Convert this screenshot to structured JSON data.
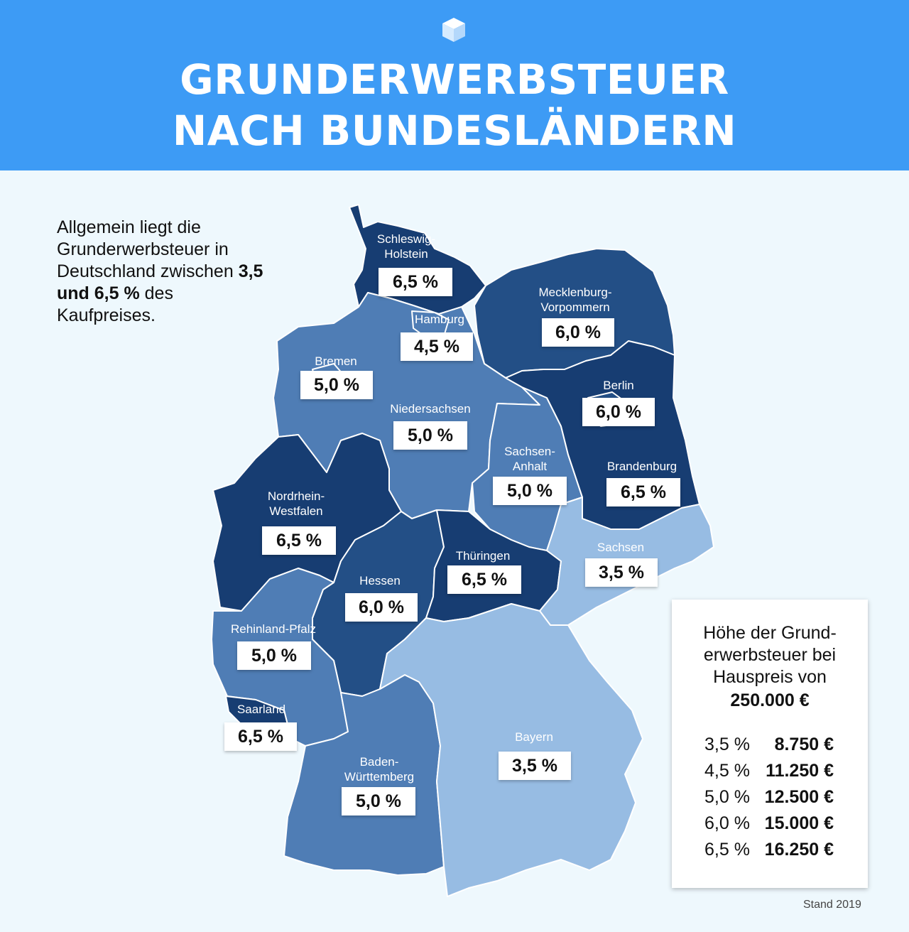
{
  "header": {
    "title_line1": "GRUNDERWERBSTEUER",
    "title_line2": "NACH BUNDESLÄNDERN",
    "background_color": "#3d9bf5",
    "logo_icon": "cube-logo-icon"
  },
  "intro": {
    "text_before": "Allgemein liegt die Grunderwerbsteuer in Deutschland zwischen ",
    "text_bold": "3,5 und 6,5 %",
    "text_after": " des Kaufpreises."
  },
  "map": {
    "color_scale": {
      "3,5 %": "#97bce3",
      "4,5 %": "#4f7db5",
      "5,0 %": "#4f7db5",
      "6,0 %": "#234f86",
      "6,5 %": "#173d72"
    },
    "states": [
      {
        "name": "Schleswig-\nHolstein",
        "rate": "6,5 %"
      },
      {
        "name": "Hamburg",
        "rate": "4,5 %"
      },
      {
        "name": "Mecklenburg-\nVorpommern",
        "rate": "6,0 %"
      },
      {
        "name": "Bremen",
        "rate": "5,0 %"
      },
      {
        "name": "Niedersachsen",
        "rate": "5,0 %"
      },
      {
        "name": "Berlin",
        "rate": "6,0 %"
      },
      {
        "name": "Sachsen-\nAnhalt",
        "rate": "5,0 %"
      },
      {
        "name": "Brandenburg",
        "rate": "6,5 %"
      },
      {
        "name": "Nordrhein-\nWestfalen",
        "rate": "6,5 %"
      },
      {
        "name": "Thüringen",
        "rate": "6,5 %"
      },
      {
        "name": "Sachsen",
        "rate": "3,5 %"
      },
      {
        "name": "Hessen",
        "rate": "6,0 %"
      },
      {
        "name": "Rehinland-Pfalz",
        "rate": "5,0 %"
      },
      {
        "name": "Saarland",
        "rate": "6,5 %"
      },
      {
        "name": "Bayern",
        "rate": "3,5 %"
      },
      {
        "name": "Baden-\nWürttemberg",
        "rate": "5,0 %"
      }
    ]
  },
  "legend": {
    "title": "Höhe der Grund-\nerwerbsteuer bei\nHauspreis von",
    "amount": "250.000 €",
    "rows": [
      {
        "rate": "3,5 %",
        "value": "8.750 €"
      },
      {
        "rate": "4,5 %",
        "value": "11.250 €"
      },
      {
        "rate": "5,0 %",
        "value": "12.500 €"
      },
      {
        "rate": "6,0 %",
        "value": "15.000 €"
      },
      {
        "rate": "6,5 %",
        "value": "16.250 €"
      }
    ]
  },
  "footnote": "Stand 2019"
}
